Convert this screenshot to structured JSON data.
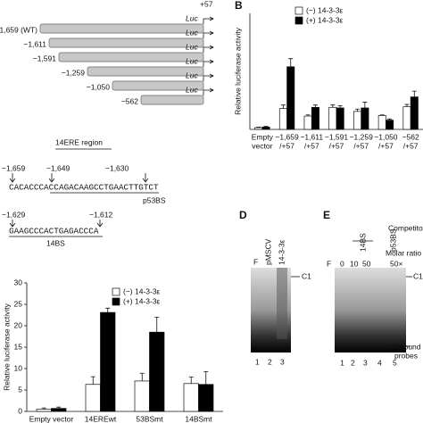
{
  "panel_labels": {
    "b": "B",
    "d": "D",
    "e": "E"
  },
  "constructs": {
    "end_label": "+57",
    "reporter": "Luc",
    "starts": [
      "−1,659 (WT)",
      "−1,611",
      "−1,591",
      "−1,259",
      "−1,050",
      "−562"
    ]
  },
  "sequence": {
    "title": "14ERE region",
    "site1": {
      "positions": [
        "−1,659",
        "−1,649",
        "−1,630"
      ],
      "sequence_plain": "CACACCCACC",
      "sequence_site": "AGACAAGCCTGAACTTGTCT",
      "site_label": "p53BS"
    },
    "site2": {
      "positions": [
        "−1,629",
        "−1,612"
      ],
      "sequence": "GAAGCCCACTGAGACCCA",
      "site_label": "14BS"
    }
  },
  "chart_data": [
    {
      "type": "bar",
      "y_label": "Relative luciferase activity",
      "categories": [
        [
          "Empty",
          "vector"
        ],
        [
          "−1,659",
          "/+57"
        ],
        [
          "−1,611",
          "/+57"
        ],
        [
          "−1,591",
          "/+57"
        ],
        [
          "−1,259",
          "/+57"
        ],
        [
          "−1,050",
          "/+57"
        ],
        [
          "−562",
          "/+57"
        ]
      ],
      "series": [
        {
          "name": "(−) 14-3-3ε",
          "color": "#ffffff",
          "values": [
            1.5,
            18,
            11.5,
            19,
            15.5,
            12,
            19.5
          ],
          "errors": [
            0.5,
            3,
            1,
            2,
            2,
            0.5,
            2
          ]
        },
        {
          "name": "(+) 14-3-3ε",
          "color": "#000000",
          "values": [
            2,
            54,
            19,
            18.5,
            18.5,
            8,
            28
          ],
          "errors": [
            0.7,
            7,
            2,
            2,
            5,
            1,
            5
          ]
        }
      ],
      "ylim": [
        0,
        100
      ]
    },
    {
      "type": "bar",
      "y_label": "Relative luciferase activity",
      "categories": [
        "Empty vector",
        "14EREwt",
        "53BSmt",
        "14BSmt"
      ],
      "series": [
        {
          "name": "(−) 14-3-3ε",
          "color": "#ffffff",
          "values": [
            0.5,
            6.3,
            7.1,
            6.5
          ],
          "errors": [
            0.3,
            1.8,
            1.8,
            1.5
          ]
        },
        {
          "name": "(+) 14-3-3ε",
          "color": "#000000",
          "values": [
            0.7,
            23.1,
            18.5,
            6.3
          ],
          "errors": [
            0.3,
            1.0,
            3.5,
            3.0
          ]
        }
      ],
      "ylim": [
        0,
        30
      ],
      "yticks": [
        0,
        5,
        10,
        15,
        20,
        25,
        30
      ]
    }
  ],
  "gel_d": {
    "lanes": [
      "F",
      "pMSCV",
      "14-3-3ε"
    ],
    "band": "C1",
    "lane_numbers": [
      "1",
      "2",
      "3"
    ]
  },
  "gel_e": {
    "competitor_label": "Competito",
    "ratio_label": "Molar ratio",
    "competitors": [
      "14BS",
      "p53BS"
    ],
    "lanes": [
      "F",
      "0",
      "10",
      "50",
      "50×"
    ],
    "band": "C1",
    "unbound": [
      "Unbound",
      "probes"
    ],
    "lane_numbers": [
      "1",
      "2",
      "3",
      "4",
      "5"
    ]
  }
}
